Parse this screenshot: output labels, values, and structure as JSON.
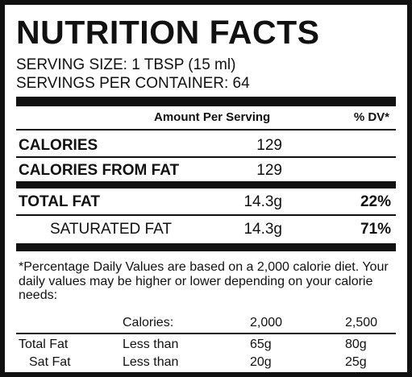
{
  "label": {
    "title": "NUTRITION FACTS",
    "serving_size": "SERVING SIZE:  1 TBSP (15 ml)",
    "servings_per_container": "SERVINGS PER CONTAINER:  64",
    "header": {
      "amount_per_serving": "Amount Per Serving",
      "dv": "% DV*"
    },
    "rows": [
      {
        "label": "CALORIES",
        "value": "129",
        "dv": ""
      },
      {
        "label": "CALORIES FROM FAT",
        "value": "129",
        "dv": ""
      },
      {
        "label": "TOTAL FAT",
        "value": "14.3g",
        "dv": "22%"
      },
      {
        "label": "SATURATED FAT",
        "value": "14.3g",
        "dv": "71%"
      }
    ],
    "footnote": "*Percentage Daily Values are based on a 2,000 calorie diet. Your daily values may be higher or lower depending on your calorie needs:",
    "footer_table": {
      "header": {
        "label": "",
        "calories": "Calories:",
        "c2000": "2,000",
        "c2500": "2,500"
      },
      "rows": [
        {
          "label": "Total Fat",
          "qualifier": "Less than",
          "c2000": "65g",
          "c2500": "80g"
        },
        {
          "label": "Sat Fat",
          "qualifier": "Less than",
          "c2000": "20g",
          "c2500": "25g"
        }
      ]
    }
  }
}
